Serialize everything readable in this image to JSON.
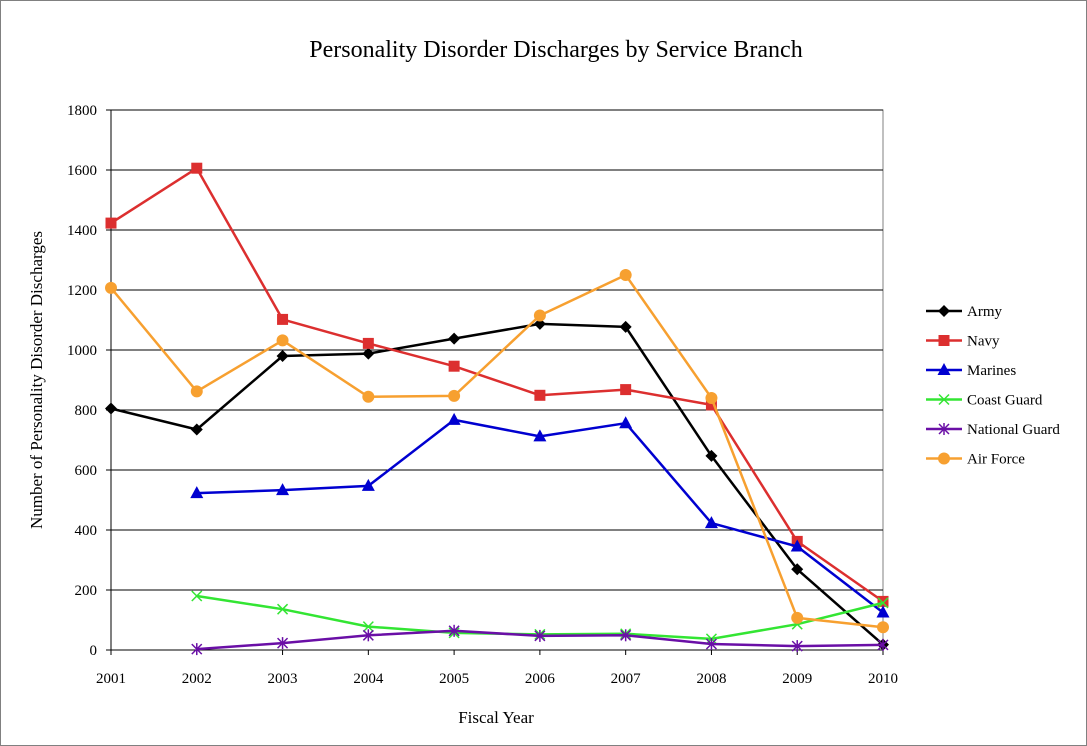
{
  "chart_data": {
    "type": "line",
    "title": "Personality Disorder Discharges by Service Branch",
    "xlabel": "Fiscal Year",
    "ylabel": "Number of Personality Disorder Discharges",
    "categories": [
      "2001",
      "2002",
      "2003",
      "2004",
      "2005",
      "2006",
      "2007",
      "2008",
      "2009",
      "2010"
    ],
    "ylim": [
      0,
      1800
    ],
    "yticks": [
      "0",
      "200",
      "400",
      "600",
      "800",
      "1000",
      "1200",
      "1400",
      "1600",
      "1800"
    ],
    "grid": "horizontal",
    "legend_position": "right",
    "series": [
      {
        "name": "Army",
        "color": "#000000",
        "marker": "diamond",
        "values": [
          805,
          735,
          980,
          988,
          1038,
          1087,
          1077,
          647,
          269,
          18
        ]
      },
      {
        "name": "Navy",
        "color": "#dc2f2f",
        "marker": "square",
        "values": [
          1423,
          1606,
          1102,
          1022,
          946,
          849,
          868,
          817,
          362,
          162
        ]
      },
      {
        "name": "Marines",
        "color": "#0000d0",
        "marker": "triangle",
        "values": [
          null,
          523,
          533,
          547,
          767,
          712,
          756,
          423,
          345,
          125
        ]
      },
      {
        "name": "Coast Guard",
        "color": "#33e533",
        "marker": "x",
        "values": [
          null,
          180,
          136,
          78,
          57,
          52,
          54,
          37,
          86,
          157
        ]
      },
      {
        "name": "National Guard",
        "color": "#6a0fa6",
        "marker": "star",
        "values": [
          null,
          3,
          23,
          49,
          64,
          47,
          49,
          20,
          13,
          17
        ]
      },
      {
        "name": "Air Force",
        "color": "#f7a030",
        "marker": "circle",
        "values": [
          1207,
          862,
          1032,
          844,
          847,
          1115,
          1250,
          840,
          107,
          76
        ]
      }
    ]
  }
}
